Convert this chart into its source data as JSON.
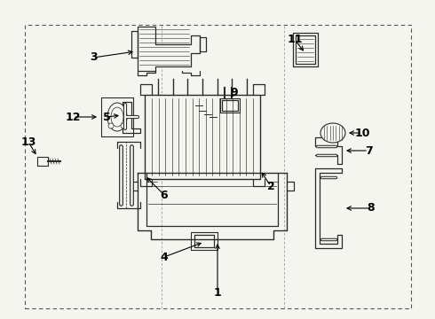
{
  "bg_color": "#f5f5f0",
  "line_color": "#2a2a2a",
  "text_color": "#000000",
  "fig_width": 4.9,
  "fig_height": 3.6,
  "dpi": 100
}
